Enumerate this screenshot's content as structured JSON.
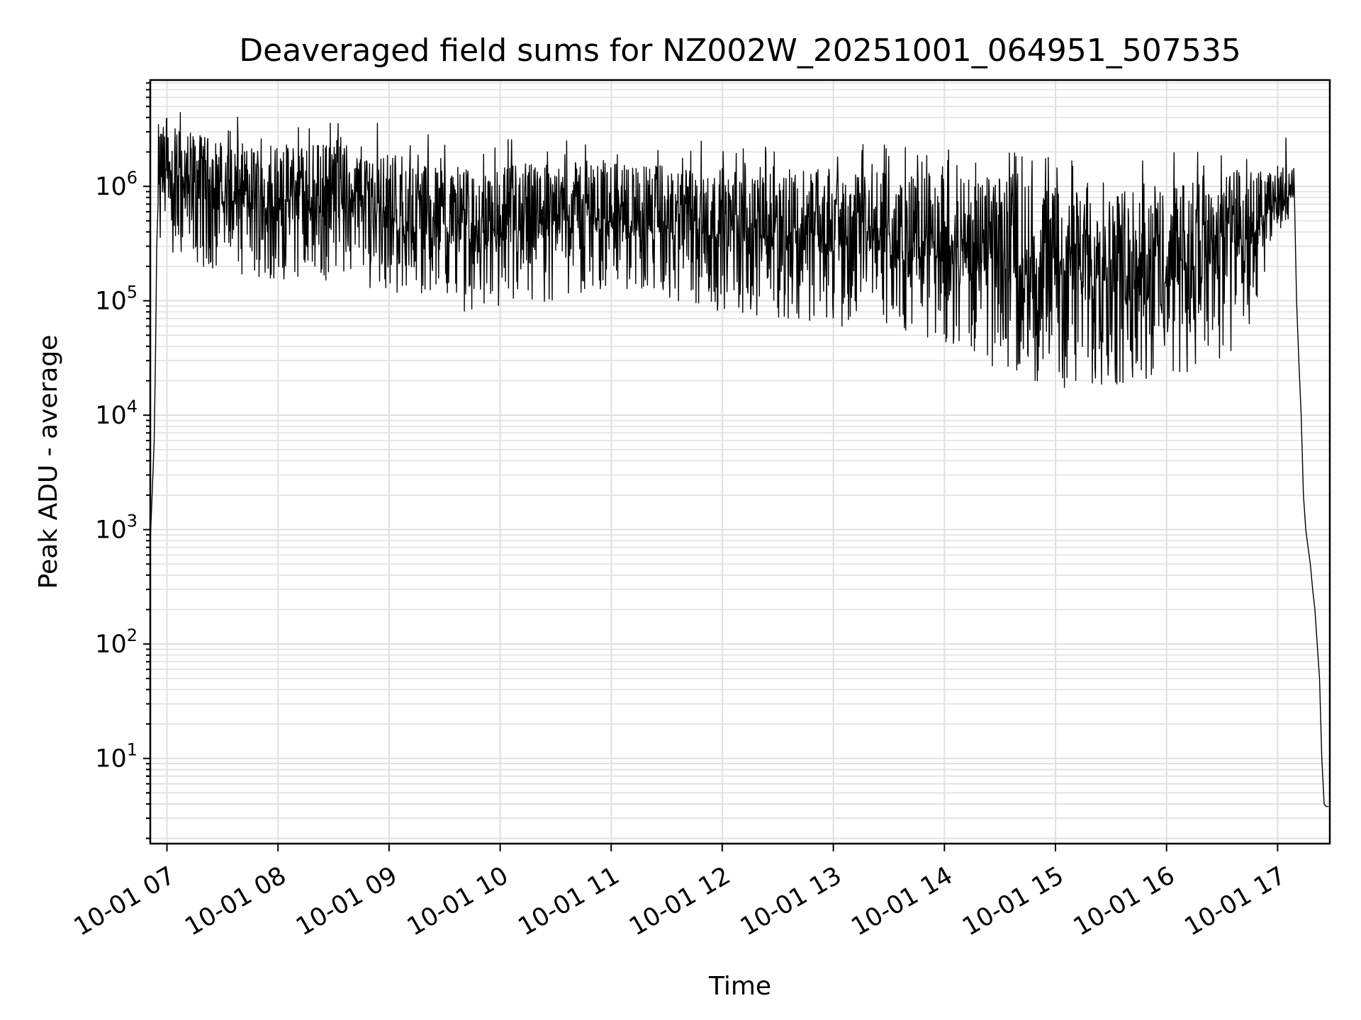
{
  "chart_data": {
    "type": "line",
    "title": "Deaveraged field sums for NZ002W_20251001_064951_507535",
    "xlabel": "Time",
    "ylabel": "Peak ADU - average",
    "y_scale": "log",
    "ylim": [
      1.8,
      8500000.0
    ],
    "xlim_hours": [
      6.85,
      17.47
    ],
    "grid": true,
    "line_color": "#000000",
    "x_ticks": [
      {
        "value": 7,
        "label": "10-01 07"
      },
      {
        "value": 8,
        "label": "10-01 08"
      },
      {
        "value": 9,
        "label": "10-01 09"
      },
      {
        "value": 10,
        "label": "10-01 10"
      },
      {
        "value": 11,
        "label": "10-01 11"
      },
      {
        "value": 12,
        "label": "10-01 12"
      },
      {
        "value": 13,
        "label": "10-01 13"
      },
      {
        "value": 14,
        "label": "10-01 14"
      },
      {
        "value": 15,
        "label": "10-01 15"
      },
      {
        "value": 16,
        "label": "10-01 16"
      },
      {
        "value": 17,
        "label": "10-01 17"
      }
    ],
    "y_ticks": [
      {
        "value": 10,
        "base": "10",
        "exp": "1"
      },
      {
        "value": 100,
        "base": "10",
        "exp": "2"
      },
      {
        "value": 1000,
        "base": "10",
        "exp": "3"
      },
      {
        "value": 10000,
        "base": "10",
        "exp": "4"
      },
      {
        "value": 100000,
        "base": "10",
        "exp": "5"
      },
      {
        "value": 1000000,
        "base": "10",
        "exp": "6"
      }
    ],
    "series": [
      {
        "name": "deaveraged field sum",
        "start_hour": 6.85,
        "start_values": [
          800,
          1500,
          3000,
          6000,
          30000,
          300000
        ],
        "end_values": [
          100000,
          30000,
          10000,
          2000,
          1000,
          700,
          500,
          300,
          200,
          100,
          50,
          10,
          4,
          3.8,
          3.8
        ],
        "envelope_hours": [
          6.92,
          7.5,
          8.0,
          8.5,
          9.0,
          9.5,
          9.8,
          10.0,
          10.5,
          11.0,
          11.5,
          12.0,
          12.5,
          13.0,
          13.5,
          14.0,
          14.5,
          15.0,
          15.5,
          16.0,
          16.5,
          16.8,
          17.0,
          17.15
        ],
        "envelope_high": [
          3500000,
          2500000,
          2200000,
          2500000,
          2000000,
          1600000,
          1200000,
          1500000,
          1800000,
          1700000,
          1500000,
          1400000,
          1500000,
          1400000,
          1300000,
          1300000,
          1200000,
          1000000,
          1000000,
          1100000,
          1300000,
          1400000,
          1500000,
          1500000
        ],
        "envelope_low": [
          250000,
          180000,
          150000,
          150000,
          120000,
          100000,
          70000,
          80000,
          100000,
          120000,
          100000,
          80000,
          70000,
          60000,
          55000,
          40000,
          25000,
          17000,
          18000,
          22000,
          25000,
          60000,
          400000,
          500000
        ]
      }
    ]
  }
}
